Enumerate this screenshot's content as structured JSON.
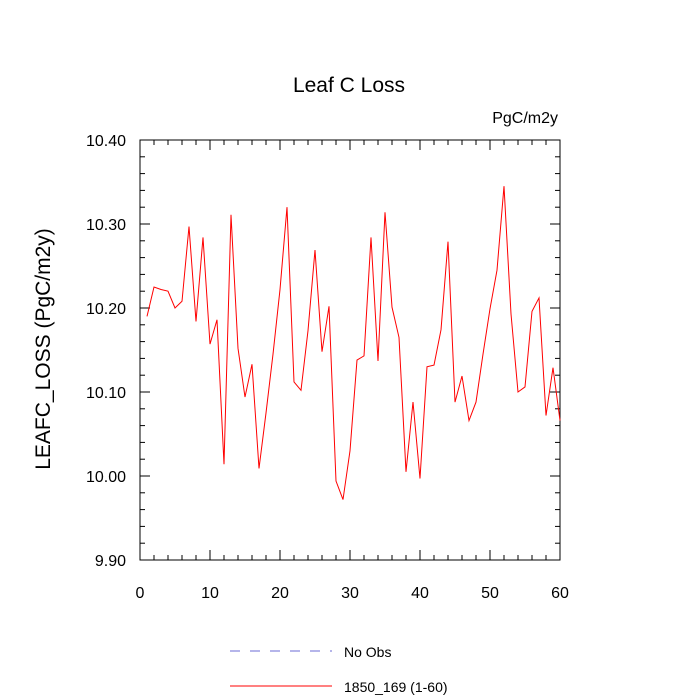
{
  "chart_data": {
    "type": "line",
    "title": "Leaf C Loss",
    "units_label": "PgC/m2y",
    "ylabel": "LEAFC_LOSS  (PgC/m2y)",
    "xlabel": "",
    "xlim": [
      0,
      60
    ],
    "ylim": [
      9.9,
      10.4
    ],
    "xticks": [
      0,
      10,
      20,
      30,
      40,
      50,
      60
    ],
    "xtick_labels": [
      "0",
      "10",
      "20",
      "30",
      "40",
      "50",
      "60"
    ],
    "yticks": [
      9.9,
      10.0,
      10.1,
      10.2,
      10.3,
      10.4
    ],
    "ytick_labels": [
      "9.90",
      "10.00",
      "10.10",
      "10.20",
      "10.30",
      "10.40"
    ],
    "grid": false,
    "legend_position": "bottom",
    "legend": [
      {
        "label": "No Obs",
        "style": "dashed",
        "color": "#6b6bd6"
      },
      {
        "label": "1850_169 (1-60)",
        "style": "solid",
        "color": "#ff0000"
      }
    ],
    "series": [
      {
        "name": "1850_169 (1-60)",
        "color": "#ff0000",
        "x": [
          1,
          2,
          3,
          4,
          5,
          6,
          7,
          8,
          9,
          10,
          11,
          12,
          13,
          14,
          15,
          16,
          17,
          18,
          19,
          20,
          21,
          22,
          23,
          24,
          25,
          26,
          27,
          28,
          29,
          30,
          31,
          32,
          33,
          34,
          35,
          36,
          37,
          38,
          39,
          40,
          41,
          42,
          43,
          44,
          45,
          46,
          47,
          48,
          49,
          50,
          51,
          52,
          53,
          54,
          55,
          56,
          57,
          58,
          59,
          60
        ],
        "y": [
          10.19,
          10.225,
          10.222,
          10.22,
          10.2,
          10.208,
          10.297,
          10.184,
          10.284,
          10.157,
          10.186,
          10.014,
          10.311,
          10.152,
          10.094,
          10.133,
          10.009,
          10.075,
          10.145,
          10.222,
          10.32,
          10.112,
          10.102,
          10.173,
          10.269,
          10.148,
          10.202,
          9.994,
          9.972,
          10.03,
          10.138,
          10.143,
          10.284,
          10.137,
          10.314,
          10.201,
          10.165,
          10.005,
          10.088,
          9.997,
          10.13,
          10.132,
          10.174,
          10.279,
          10.088,
          10.119,
          10.066,
          10.088,
          10.145,
          10.199,
          10.245,
          10.345,
          10.193,
          10.1,
          10.106,
          10.196,
          10.212,
          10.072,
          10.129,
          10.066
        ]
      }
    ]
  }
}
